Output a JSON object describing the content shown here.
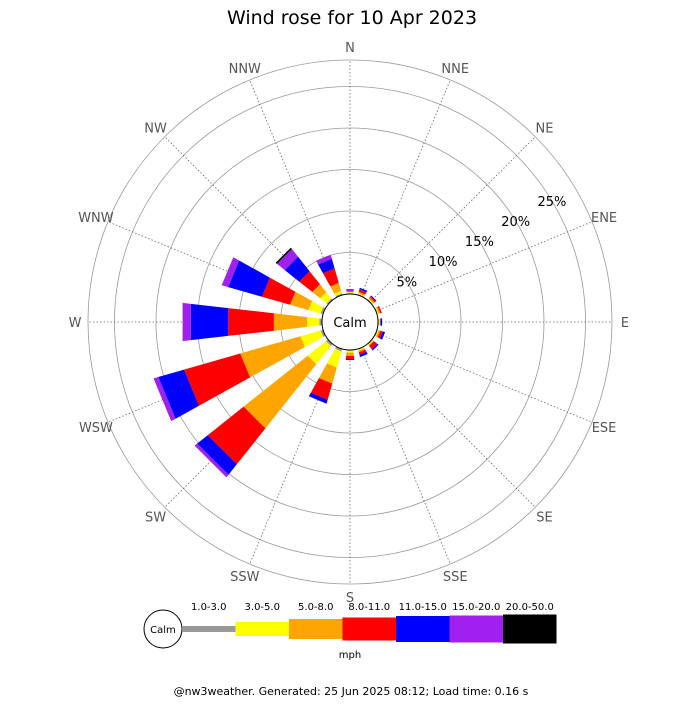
{
  "title": "Wind rose for 10 Apr 2023",
  "footer": "@nw3weather. Generated: 25 Jun 2025 08:12; Load time: 0.16 s",
  "chart_data": {
    "type": "windrose",
    "title": "Wind rose for 10 Apr 2023",
    "directions": [
      "N",
      "NNE",
      "NE",
      "ENE",
      "E",
      "ESE",
      "SE",
      "SSE",
      "S",
      "SSW",
      "SW",
      "WSW",
      "W",
      "WNW",
      "NW",
      "NNW"
    ],
    "radial_ticks": [
      "5%",
      "10%",
      "15%",
      "20%",
      "25%"
    ],
    "radial_tick_values": [
      5,
      10,
      15,
      20,
      25
    ],
    "calm_label": "Calm",
    "speed_bins": [
      {
        "label": "1.0-3.0",
        "color": "#999999"
      },
      {
        "label": "3.0-5.0",
        "color": "#ffff00"
      },
      {
        "label": "5.0-8.0",
        "color": "#ffa500"
      },
      {
        "label": "8.0-11.0",
        "color": "#ff0000"
      },
      {
        "label": "11.0-15.0",
        "color": "#0000ff"
      },
      {
        "label": "15.0-20.0",
        "color": "#a020f0"
      },
      {
        "label": "20.0-50.0",
        "color": "#000000"
      }
    ],
    "units": "mph",
    "frequencies_percent": {
      "N": [
        0.1,
        0.1,
        0.1,
        0.0,
        0.0,
        0.3,
        0.0
      ],
      "NNE": [
        0.1,
        0.1,
        0.2,
        0.3,
        0.2,
        0.0,
        0.0
      ],
      "NE": [
        0.1,
        0.1,
        0.2,
        0.2,
        0.1,
        0.0,
        0.0
      ],
      "ENE": [
        0.1,
        0.1,
        0.2,
        0.2,
        0.0,
        0.0,
        0.0
      ],
      "E": [
        0.1,
        0.1,
        0.1,
        0.0,
        0.2,
        0.0,
        0.0
      ],
      "ESE": [
        0.1,
        0.1,
        0.2,
        0.3,
        0.3,
        0.0,
        0.0
      ],
      "SE": [
        0.1,
        0.1,
        0.1,
        0.5,
        0.2,
        0.0,
        0.0
      ],
      "SSE": [
        0.1,
        0.1,
        0.2,
        0.3,
        0.3,
        0.0,
        0.0
      ],
      "S": [
        0.1,
        0.2,
        0.4,
        0.4,
        0.1,
        0.0,
        0.0
      ],
      "SSW": [
        0.3,
        2.0,
        2.0,
        2.0,
        0.5,
        0.0,
        0.0
      ],
      "SW": [
        0.3,
        2.8,
        9.8,
        5.5,
        1.6,
        0.4,
        0.0
      ],
      "WSW": [
        0.3,
        2.5,
        7.5,
        7.0,
        3.2,
        0.6,
        0.0
      ],
      "W": [
        0.3,
        1.5,
        4.0,
        5.5,
        4.5,
        1.0,
        0.0
      ],
      "WNW": [
        0.3,
        1.5,
        2.3,
        3.5,
        4.2,
        0.8,
        0.0
      ],
      "NW": [
        0.2,
        1.0,
        1.2,
        2.0,
        2.2,
        1.2,
        0.2
      ],
      "NNW": [
        0.2,
        0.3,
        1.0,
        1.8,
        1.2,
        0.5,
        0.0
      ]
    }
  }
}
